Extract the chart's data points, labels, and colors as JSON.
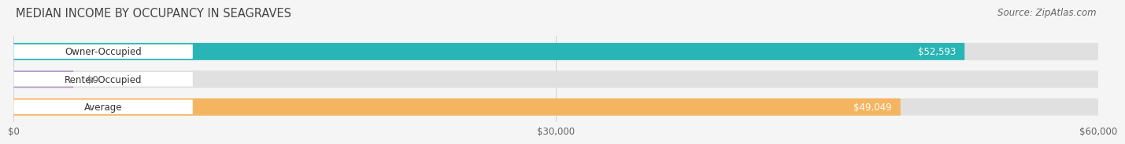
{
  "title": "MEDIAN INCOME BY OCCUPANCY IN SEAGRAVES",
  "source": "Source: ZipAtlas.com",
  "categories": [
    "Owner-Occupied",
    "Renter-Occupied",
    "Average"
  ],
  "values": [
    52593,
    0,
    49049
  ],
  "bar_colors": [
    "#29b5b5",
    "#b49ec8",
    "#f5b560"
  ],
  "xlim": [
    0,
    60000
  ],
  "xticks": [
    0,
    30000,
    60000
  ],
  "xtick_labels": [
    "$0",
    "$30,000",
    "$60,000"
  ],
  "value_labels": [
    "$52,593",
    "$0",
    "$49,049"
  ],
  "bar_height": 0.62,
  "title_fontsize": 10.5,
  "source_fontsize": 8.5,
  "label_fontsize": 8.5,
  "tick_fontsize": 8.5,
  "title_color": "#444444",
  "source_color": "#666666",
  "label_color": "#333333",
  "value_label_color_inside": "#ffffff",
  "value_label_color_outside": "#666666",
  "bg_color": "#f5f5f5",
  "bar_bg_color": "#e0e0e0"
}
